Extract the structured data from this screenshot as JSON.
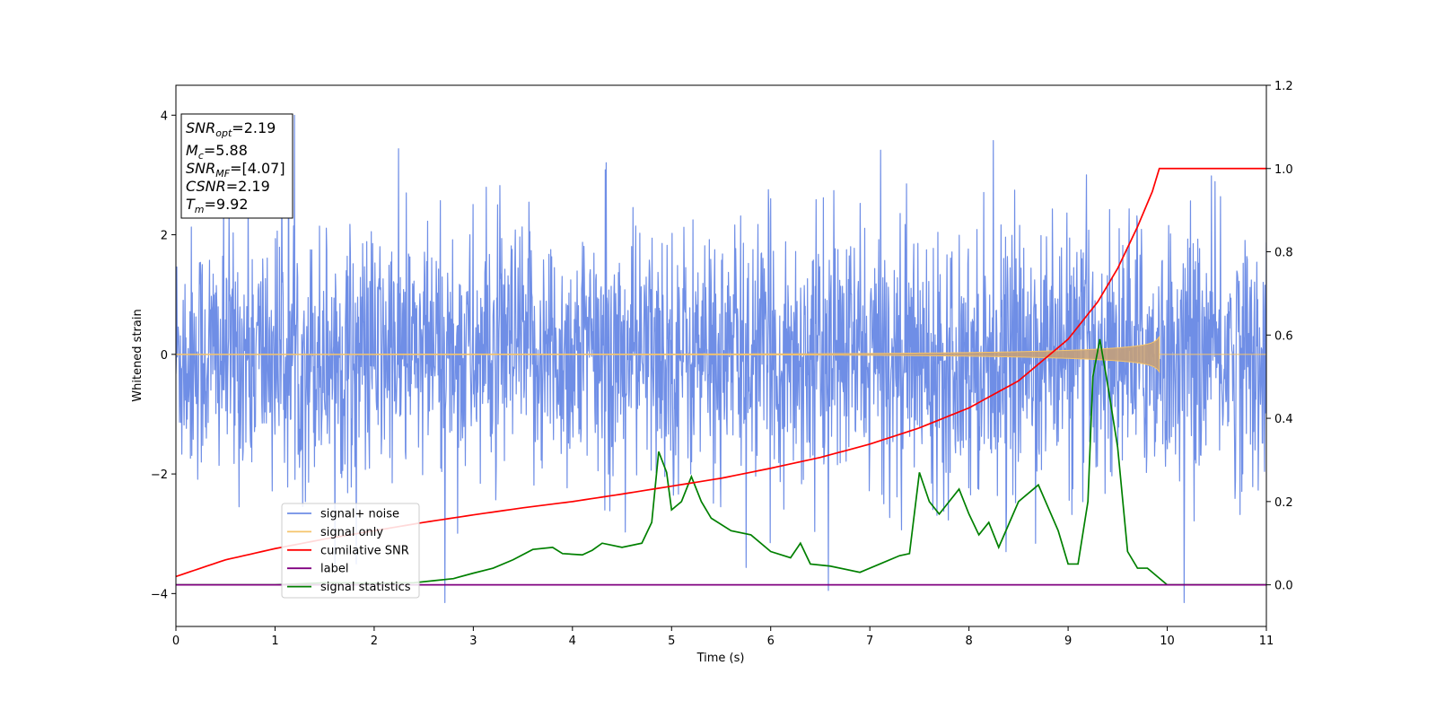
{
  "chart_data": {
    "type": "line",
    "xlabel": "Time (s)",
    "ylabel_left": "Whitened strain",
    "ylabel_right": "",
    "xlim": [
      0,
      11
    ],
    "ylim_left": [
      -4.55,
      4.5
    ],
    "ylim_right": [
      -0.1,
      1.2
    ],
    "xticks": [
      0,
      1,
      2,
      3,
      4,
      5,
      6,
      7,
      8,
      9,
      10,
      11
    ],
    "yticks_left": [
      -4,
      -2,
      0,
      2,
      4
    ],
    "yticks_right": [
      0.0,
      0.2,
      0.4,
      0.6,
      0.8,
      1.0,
      1.2
    ],
    "yticks_right_labels": [
      "0.0",
      "0.2",
      "0.4",
      "0.6",
      "0.8",
      "1.0",
      "1.2"
    ],
    "grid": false,
    "legend_placement": "lower-left",
    "annotation": {
      "snr_opt": {
        "main": "SNR",
        "sub": "opt",
        "value": "=2.19"
      },
      "mc": {
        "main": "M",
        "sub": "c",
        "value": "=5.88"
      },
      "snr_mf": {
        "main": "SNR",
        "sub": "MF",
        "value": "=[4.07]"
      },
      "csnr": {
        "main": "CSNR",
        "value": "=2.19"
      },
      "tm": {
        "main": "T",
        "sub": "m",
        "value": "=9.92"
      }
    },
    "series": [
      {
        "name": "signal+ noise",
        "axis": "left",
        "color": "#6f8ee6",
        "kind": "noise",
        "center": 0,
        "typical_abs": 1.5,
        "max": 4.1,
        "min": -4.15,
        "x_range": [
          0,
          11
        ]
      },
      {
        "name": "signal only",
        "axis": "left",
        "color": "#f5c46b",
        "kind": "chirp",
        "x_range": [
          0,
          9.92
        ],
        "amplitude_end": 0.3
      },
      {
        "name": "cumilative SNR",
        "axis": "right",
        "color": "#ff0000",
        "x": [
          0,
          0.5,
          1,
          1.5,
          2,
          2.5,
          3,
          3.5,
          4,
          4.5,
          5,
          5.5,
          6,
          6.5,
          7,
          7.5,
          8,
          8.5,
          9,
          9.3,
          9.5,
          9.7,
          9.85,
          9.92,
          10.5,
          11
        ],
        "y": [
          0.02,
          0.06,
          0.087,
          0.11,
          0.13,
          0.15,
          0.168,
          0.185,
          0.2,
          0.218,
          0.237,
          0.256,
          0.28,
          0.306,
          0.338,
          0.377,
          0.425,
          0.49,
          0.59,
          0.68,
          0.76,
          0.86,
          0.945,
          1.0,
          1.0,
          1.0
        ]
      },
      {
        "name": "label",
        "axis": "right",
        "color": "#800080",
        "x": [
          0,
          11
        ],
        "y": [
          0,
          0
        ]
      },
      {
        "name": "signal statistics",
        "axis": "right",
        "color": "#008000",
        "x": [
          0,
          0.5,
          1,
          1.5,
          2,
          2.4,
          2.6,
          2.8,
          3,
          3.2,
          3.4,
          3.6,
          3.8,
          3.9,
          4.1,
          4.2,
          4.3,
          4.5,
          4.7,
          4.8,
          4.87,
          4.95,
          5.0,
          5.1,
          5.2,
          5.3,
          5.4,
          5.6,
          5.8,
          6.0,
          6.2,
          6.3,
          6.4,
          6.6,
          6.9,
          7.1,
          7.3,
          7.4,
          7.5,
          7.6,
          7.7,
          7.8,
          7.9,
          8.0,
          8.1,
          8.2,
          8.3,
          8.5,
          8.7,
          8.9,
          9.0,
          9.1,
          9.2,
          9.25,
          9.32,
          9.4,
          9.5,
          9.6,
          9.7,
          9.8,
          9.9,
          10.0,
          10.2,
          10.5,
          10.8,
          11
        ],
        "y": [
          0.0,
          0.0,
          0.0,
          0.005,
          0.004,
          0.005,
          0.01,
          0.015,
          0.028,
          0.04,
          0.06,
          0.085,
          0.09,
          0.075,
          0.072,
          0.083,
          0.1,
          0.09,
          0.1,
          0.15,
          0.32,
          0.27,
          0.18,
          0.2,
          0.26,
          0.2,
          0.16,
          0.13,
          0.12,
          0.08,
          0.065,
          0.1,
          0.05,
          0.045,
          0.03,
          0.05,
          0.07,
          0.075,
          0.27,
          0.2,
          0.17,
          0.2,
          0.23,
          0.17,
          0.12,
          0.15,
          0.09,
          0.2,
          0.24,
          0.13,
          0.05,
          0.05,
          0.2,
          0.5,
          0.59,
          0.48,
          0.33,
          0.08,
          0.04,
          0.04,
          0.02,
          0.0,
          0.0,
          0.0,
          0.0,
          0.0
        ]
      }
    ]
  }
}
